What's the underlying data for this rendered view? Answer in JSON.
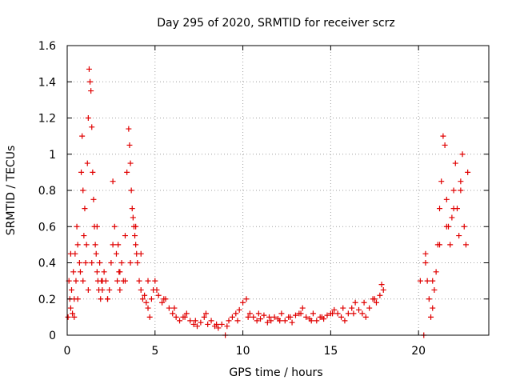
{
  "chart_data": {
    "type": "scatter",
    "title": "Day 295 of 2020, SRMTID for receiver scrz",
    "xlabel": "GPS time / hours",
    "ylabel": "SRMTID / TECUs",
    "xlim": [
      0,
      24
    ],
    "ylim": [
      0,
      1.6
    ],
    "x_ticks": [
      0,
      5,
      10,
      15,
      20
    ],
    "x_tick_labels": [
      "0",
      "5",
      "10",
      "15",
      "20"
    ],
    "y_ticks": [
      0,
      0.2,
      0.4,
      0.6,
      0.8,
      1.0,
      1.2,
      1.4,
      1.6
    ],
    "y_tick_labels": [
      "0",
      "0.2",
      "0.4",
      "0.6",
      "0.8",
      "1",
      "1.2",
      "1.4",
      "1.6"
    ],
    "grid": true,
    "marker": "plus",
    "series_color": "#e00000",
    "series": [
      {
        "name": "SRMTID",
        "x": [
          0.05,
          0.1,
          0.15,
          0.2,
          0.25,
          0.3,
          0.35,
          0.4,
          0.45,
          0.5,
          0.55,
          0.6,
          0.7,
          0.75,
          0.8,
          0.85,
          0.9,
          0.95,
          1.0,
          1.05,
          1.1,
          1.15,
          1.2,
          1.25,
          1.3,
          1.35,
          1.4,
          1.45,
          1.5,
          1.55,
          1.6,
          1.65,
          1.7,
          1.75,
          1.8,
          1.85,
          1.9,
          1.95,
          2.0,
          2.1,
          2.2,
          2.3,
          2.4,
          2.5,
          2.6,
          2.7,
          2.8,
          2.85,
          2.9,
          2.95,
          3.0,
          3.1,
          3.2,
          3.3,
          3.4,
          3.5,
          3.55,
          3.6,
          3.65,
          3.7,
          3.75,
          3.8,
          3.85,
          3.9,
          3.95,
          4.0,
          4.1,
          4.2,
          4.3,
          4.4,
          4.5,
          4.6,
          4.7,
          4.8,
          4.9,
          5.0,
          5.2,
          5.4,
          5.6,
          5.8,
          6.0,
          6.2,
          6.4,
          6.6,
          6.8,
          7.0,
          7.2,
          7.4,
          7.6,
          7.8,
          8.0,
          8.2,
          8.4,
          8.6,
          8.8,
          9.0,
          9.2,
          9.4,
          9.6,
          9.8,
          10.0,
          10.2,
          10.4,
          10.6,
          10.8,
          11.0,
          11.2,
          11.4,
          11.6,
          11.8,
          12.0,
          12.2,
          12.4,
          12.6,
          12.8,
          13.0,
          13.2,
          13.4,
          13.6,
          13.8,
          14.0,
          14.2,
          14.4,
          14.6,
          14.8,
          15.0,
          15.2,
          15.4,
          15.6,
          15.8,
          16.0,
          16.2,
          16.4,
          16.6,
          16.8,
          17.0,
          17.2,
          17.4,
          17.6,
          17.8,
          18.0,
          20.1,
          20.3,
          20.4,
          20.5,
          20.6,
          20.7,
          20.8,
          20.9,
          21.0,
          21.1,
          21.2,
          21.3,
          21.4,
          21.5,
          21.6,
          21.7,
          21.8,
          21.9,
          22.0,
          22.1,
          22.2,
          22.3,
          22.4,
          22.5,
          22.6,
          22.7,
          0.2,
          0.4,
          0.6,
          0.9,
          1.2,
          1.4,
          1.7,
          2.0,
          2.3,
          2.6,
          3.0,
          3.3,
          3.6,
          3.9,
          4.2,
          4.6,
          5.1,
          5.5,
          6.1,
          6.7,
          7.3,
          7.9,
          8.5,
          9.1,
          9.7,
          10.3,
          10.9,
          11.5,
          12.1,
          12.7,
          13.3,
          13.9,
          14.5,
          15.1,
          15.7,
          16.3,
          16.9,
          17.5,
          17.9,
          20.4,
          20.8,
          21.2,
          21.6,
          22.0,
          22.4,
          22.8
        ],
        "y": [
          0.1,
          0.3,
          0.2,
          0.15,
          0.25,
          0.12,
          0.35,
          0.2,
          0.45,
          0.3,
          0.6,
          0.5,
          0.4,
          0.35,
          0.9,
          1.1,
          0.8,
          0.55,
          0.7,
          0.4,
          0.5,
          0.95,
          1.2,
          1.47,
          1.4,
          1.35,
          1.15,
          0.9,
          0.75,
          0.6,
          0.5,
          0.45,
          0.35,
          0.3,
          0.25,
          0.4,
          0.2,
          0.3,
          0.25,
          0.35,
          0.3,
          0.2,
          0.25,
          0.4,
          0.85,
          0.6,
          0.45,
          0.3,
          0.5,
          0.35,
          0.25,
          0.4,
          0.3,
          0.55,
          0.9,
          1.14,
          1.05,
          0.95,
          0.8,
          0.7,
          0.65,
          0.6,
          0.55,
          0.5,
          0.45,
          0.4,
          0.3,
          0.25,
          0.2,
          0.22,
          0.18,
          0.15,
          0.1,
          0.2,
          0.25,
          0.3,
          0.22,
          0.18,
          0.2,
          0.15,
          0.12,
          0.1,
          0.08,
          0.1,
          0.12,
          0.08,
          0.06,
          0.05,
          0.07,
          0.1,
          0.06,
          0.08,
          0.05,
          0.04,
          0.06,
          0.0,
          0.08,
          0.1,
          0.12,
          0.14,
          0.18,
          0.2,
          0.12,
          0.1,
          0.08,
          0.09,
          0.11,
          0.07,
          0.08,
          0.1,
          0.09,
          0.12,
          0.08,
          0.1,
          0.07,
          0.11,
          0.12,
          0.15,
          0.1,
          0.09,
          0.12,
          0.08,
          0.1,
          0.09,
          0.11,
          0.12,
          0.14,
          0.12,
          0.1,
          0.08,
          0.12,
          0.15,
          0.18,
          0.14,
          0.12,
          0.1,
          0.15,
          0.2,
          0.18,
          0.22,
          0.25,
          0.3,
          0.0,
          0.45,
          0.3,
          0.2,
          0.1,
          0.15,
          0.25,
          0.35,
          0.5,
          0.7,
          0.85,
          1.1,
          1.05,
          0.75,
          0.6,
          0.5,
          0.65,
          0.8,
          0.95,
          0.7,
          0.55,
          0.85,
          1.0,
          0.6,
          0.5,
          0.45,
          0.1,
          0.2,
          0.3,
          0.25,
          0.4,
          0.6,
          0.3,
          0.2,
          0.5,
          0.35,
          0.3,
          0.4,
          0.6,
          0.45,
          0.3,
          0.25,
          0.2,
          0.15,
          0.1,
          0.08,
          0.12,
          0.06,
          0.05,
          0.08,
          0.1,
          0.12,
          0.1,
          0.08,
          0.1,
          0.12,
          0.08,
          0.1,
          0.12,
          0.15,
          0.12,
          0.18,
          0.2,
          0.28,
          0.4,
          0.3,
          0.5,
          0.6,
          0.7,
          0.8,
          0.9
        ]
      }
    ]
  }
}
